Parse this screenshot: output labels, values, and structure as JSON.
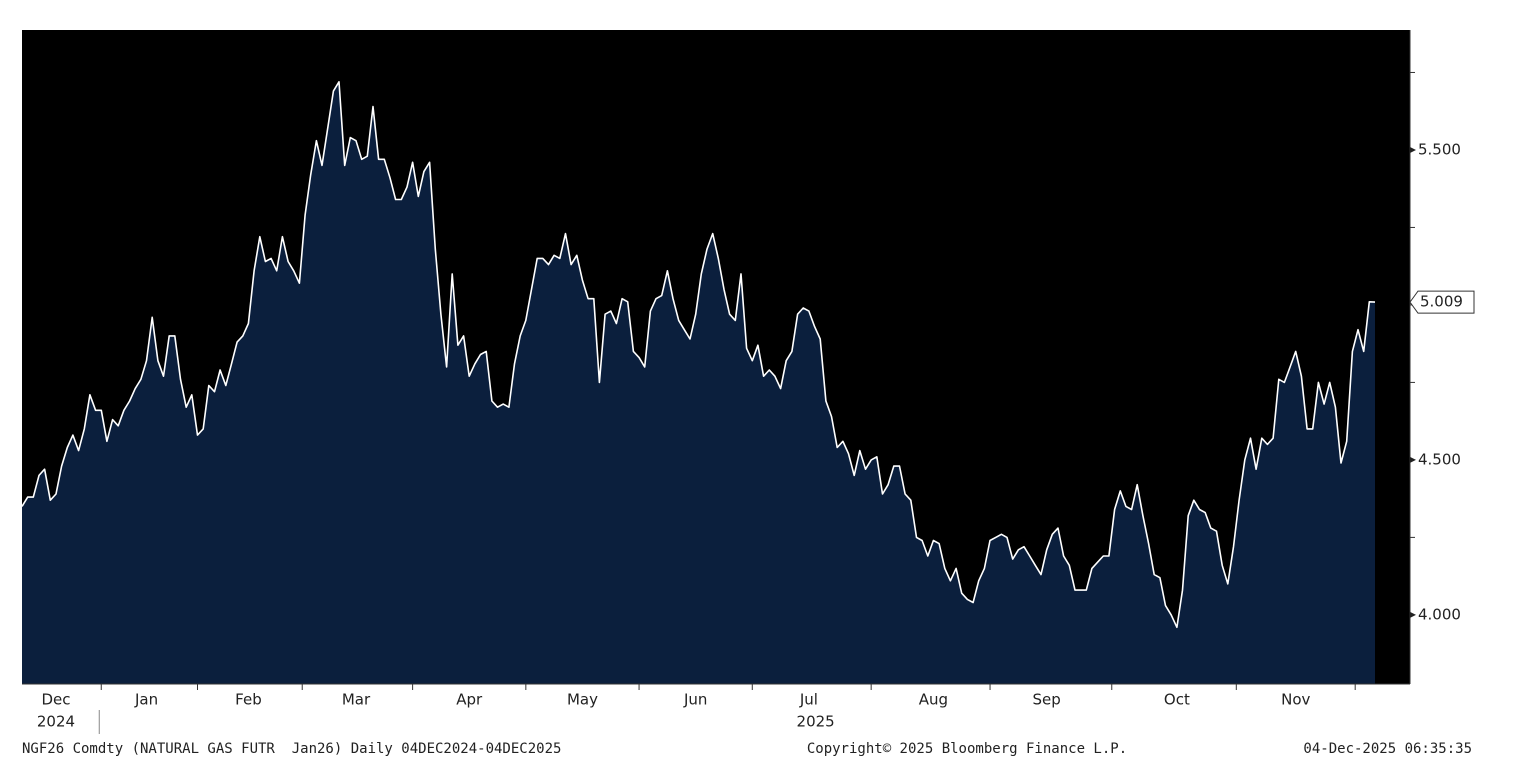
{
  "chart_data": {
    "type": "area",
    "categories": [
      null,
      null,
      null,
      null,
      null,
      null,
      "Dec",
      null,
      null,
      null,
      null,
      null,
      null,
      null,
      null,
      null,
      null,
      null,
      null,
      null,
      null,
      null,
      "Jan",
      null,
      null,
      null,
      null,
      null,
      null,
      null,
      null,
      null,
      null,
      null,
      null,
      null,
      null,
      null,
      null,
      null,
      "Feb",
      null,
      null,
      null,
      null,
      null,
      null,
      null,
      null,
      null,
      null,
      null,
      null,
      null,
      null,
      null,
      null,
      null,
      null,
      "Mar",
      null,
      null,
      null,
      null,
      null,
      null,
      null,
      null,
      null,
      null,
      null,
      null,
      null,
      null,
      null,
      null,
      null,
      null,
      null,
      "Apr",
      null,
      null,
      null,
      null,
      null,
      null,
      null,
      null,
      null,
      null,
      null,
      null,
      null,
      null,
      null,
      null,
      null,
      null,
      null,
      "May",
      null,
      null,
      null,
      null,
      null,
      null,
      null,
      null,
      null,
      null,
      null,
      null,
      null,
      null,
      null,
      null,
      null,
      null,
      null,
      "Jun",
      null,
      null,
      null,
      null,
      null,
      null,
      null,
      null,
      null,
      null,
      null,
      null,
      null,
      null,
      null,
      null,
      null,
      null,
      null,
      "Jul",
      null,
      null,
      null,
      null,
      null,
      null,
      null,
      null,
      null,
      null,
      null,
      null,
      null,
      null,
      null,
      null,
      null,
      null,
      null,
      null,
      null,
      "Aug",
      null,
      null,
      null,
      null,
      null,
      null,
      null,
      null,
      null,
      null,
      null,
      null,
      null,
      null,
      null,
      null,
      null,
      null,
      null,
      "Sep",
      null,
      null,
      null,
      null,
      null,
      null,
      null,
      null,
      null,
      null,
      null,
      null,
      null,
      null,
      null,
      null,
      null,
      null,
      null,
      null,
      null,
      null,
      "Oct",
      null,
      null,
      null,
      null,
      null,
      null,
      null,
      null,
      null,
      null,
      null,
      null,
      null,
      null,
      null,
      null,
      null,
      null,
      null,
      null,
      "Nov",
      null,
      null,
      null,
      null,
      null,
      null,
      null,
      null,
      null,
      null,
      null,
      null,
      null,
      null
    ],
    "year_labels": [
      "2024",
      "2025"
    ],
    "values": [
      4.35,
      4.38,
      4.38,
      4.45,
      4.47,
      4.37,
      4.39,
      4.48,
      4.54,
      4.58,
      4.53,
      4.6,
      4.71,
      4.66,
      4.66,
      4.56,
      4.63,
      4.61,
      4.66,
      4.69,
      4.73,
      4.76,
      4.82,
      4.96,
      4.82,
      4.77,
      4.9,
      4.9,
      4.76,
      4.67,
      4.71,
      4.58,
      4.6,
      4.74,
      4.72,
      4.79,
      4.74,
      4.81,
      4.88,
      4.9,
      4.94,
      5.11,
      5.22,
      5.14,
      5.15,
      5.11,
      5.22,
      5.14,
      5.11,
      5.07,
      5.29,
      5.42,
      5.53,
      5.45,
      5.57,
      5.69,
      5.72,
      5.45,
      5.54,
      5.53,
      5.47,
      5.48,
      5.64,
      5.47,
      5.47,
      5.41,
      5.34,
      5.34,
      5.38,
      5.46,
      5.35,
      5.43,
      5.46,
      5.18,
      4.97,
      4.8,
      5.1,
      4.87,
      4.9,
      4.77,
      4.81,
      4.84,
      4.85,
      4.69,
      4.67,
      4.68,
      4.67,
      4.81,
      4.9,
      4.95,
      5.05,
      5.15,
      5.15,
      5.13,
      5.16,
      5.15,
      5.23,
      5.13,
      5.16,
      5.08,
      5.02,
      5.02,
      4.75,
      4.97,
      4.98,
      4.94,
      5.02,
      5.01,
      4.85,
      4.83,
      4.8,
      4.98,
      5.02,
      5.03,
      5.11,
      5.02,
      4.95,
      4.92,
      4.89,
      4.97,
      5.1,
      5.18,
      5.23,
      5.15,
      5.05,
      4.97,
      4.95,
      5.1,
      4.86,
      4.82,
      4.87,
      4.77,
      4.79,
      4.77,
      4.73,
      4.82,
      4.85,
      4.97,
      4.99,
      4.98,
      4.93,
      4.89,
      4.69,
      4.64,
      4.54,
      4.56,
      4.52,
      4.45,
      4.53,
      4.47,
      4.5,
      4.51,
      4.39,
      4.42,
      4.48,
      4.48,
      4.39,
      4.37,
      4.25,
      4.24,
      4.19,
      4.24,
      4.23,
      4.15,
      4.11,
      4.15,
      4.07,
      4.05,
      4.04,
      4.11,
      4.15,
      4.24,
      4.25,
      4.26,
      4.25,
      4.18,
      4.21,
      4.22,
      4.19,
      4.16,
      4.13,
      4.21,
      4.26,
      4.28,
      4.19,
      4.16,
      4.08,
      4.08,
      4.08,
      4.15,
      4.17,
      4.19,
      4.19,
      4.34,
      4.4,
      4.35,
      4.34,
      4.42,
      4.32,
      4.23,
      4.13,
      4.12,
      4.03,
      4.0,
      3.96,
      4.08,
      4.32,
      4.37,
      4.34,
      4.33,
      4.28,
      4.27,
      4.16,
      4.1,
      4.22,
      4.37,
      4.5,
      4.57,
      4.47,
      4.57,
      4.55,
      4.57,
      4.76,
      4.75,
      4.8,
      4.85,
      4.77,
      4.6,
      4.6,
      4.75,
      4.68,
      4.75,
      4.67,
      4.49,
      4.56,
      4.85,
      4.92,
      4.85,
      5.01,
      5.009
    ],
    "color": "#ffffff",
    "fill": "#0b1f3d",
    "ylim": [
      3.777,
      5.887
    ],
    "yticks": [
      {
        "value": 4.0,
        "label": "4.000"
      },
      {
        "value": 4.5,
        "label": "4.500"
      },
      {
        "value": 5.5,
        "label": "5.500"
      }
    ],
    "yminor": [
      4.25,
      4.75,
      5.0,
      5.25,
      5.75
    ],
    "footer": {
      "left": "NGF26 Comdty (NATURAL GAS FUTR  Jan26) Daily 04DEC2024-04DEC2025",
      "center": "Copyright© 2025 Bloomberg Finance L.P.",
      "right": "04-Dec-2025 06:35:35"
    }
  }
}
